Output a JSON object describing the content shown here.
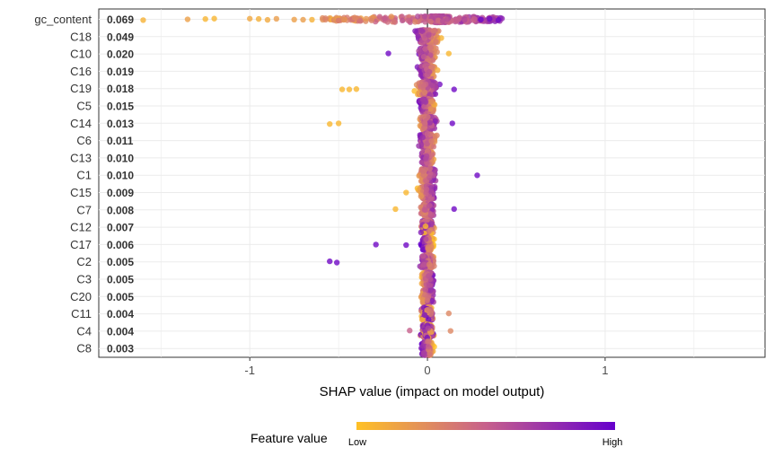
{
  "chart_data": {
    "type": "scatter",
    "subtype": "shap-beeswarm",
    "xlabel": "SHAP value (impact on model output)",
    "xlim": [
      -1.85,
      1.9
    ],
    "x_ticks": [
      -1,
      0,
      1
    ],
    "x_tick_labels": [
      "-1",
      "0",
      "1"
    ],
    "grid": true,
    "features": [
      {
        "name": "gc_content",
        "mean_abs_shap": "0.069",
        "min": -1.6,
        "max": 0.42,
        "spread": 0.22,
        "outliers_low": [
          -1.6,
          -1.35,
          -1.25,
          -1.2,
          -1.0,
          -0.95,
          -0.9,
          -0.85,
          -0.75,
          -0.7,
          -0.65
        ],
        "outliers_high": [
          0.3,
          0.35,
          0.4
        ],
        "trend": "high-positive"
      },
      {
        "name": "C18",
        "mean_abs_shap": "0.049",
        "min": -0.2,
        "max": 0.08,
        "spread": 0.06,
        "outliers_low": [],
        "outliers_high": [],
        "trend": "high-negative"
      },
      {
        "name": "C10",
        "mean_abs_shap": "0.020",
        "min": -0.15,
        "max": 0.12,
        "spread": 0.04,
        "outliers_low": [
          -0.22
        ],
        "outliers_high": [
          0.12
        ],
        "trend": "high-negative"
      },
      {
        "name": "C16",
        "mean_abs_shap": "0.019",
        "min": -0.12,
        "max": 0.06,
        "spread": 0.04,
        "outliers_low": [],
        "outliers_high": [],
        "trend": "high-negative"
      },
      {
        "name": "C19",
        "mean_abs_shap": "0.018",
        "min": -0.13,
        "max": 0.15,
        "spread": 0.05,
        "outliers_low": [
          -0.48,
          -0.44,
          -0.4
        ],
        "outliers_high": [
          0.15
        ],
        "trend": "high-positive"
      },
      {
        "name": "C5",
        "mean_abs_shap": "0.015",
        "min": -0.1,
        "max": 0.06,
        "spread": 0.04,
        "outliers_low": [],
        "outliers_high": [],
        "trend": "high-negative"
      },
      {
        "name": "C14",
        "mean_abs_shap": "0.013",
        "min": -0.16,
        "max": 0.14,
        "spread": 0.04,
        "outliers_low": [
          -0.55,
          -0.5
        ],
        "outliers_high": [
          0.14
        ],
        "trend": "high-positive"
      },
      {
        "name": "C6",
        "mean_abs_shap": "0.011",
        "min": -0.14,
        "max": 0.06,
        "spread": 0.04,
        "outliers_low": [],
        "outliers_high": [],
        "trend": "high-negative"
      },
      {
        "name": "C13",
        "mean_abs_shap": "0.010",
        "min": -0.1,
        "max": 0.05,
        "spread": 0.03,
        "outliers_low": [],
        "outliers_high": [],
        "trend": "high-negative"
      },
      {
        "name": "C1",
        "mean_abs_shap": "0.010",
        "min": -0.14,
        "max": 0.11,
        "spread": 0.04,
        "outliers_low": [],
        "outliers_high": [
          0.28
        ],
        "trend": "high-positive"
      },
      {
        "name": "C15",
        "mean_abs_shap": "0.009",
        "min": -0.06,
        "max": 0.11,
        "spread": 0.04,
        "outliers_low": [
          -0.12
        ],
        "outliers_high": [],
        "trend": "high-positive"
      },
      {
        "name": "C7",
        "mean_abs_shap": "0.008",
        "min": -0.1,
        "max": 0.15,
        "spread": 0.03,
        "outliers_low": [
          -0.18
        ],
        "outliers_high": [
          0.15
        ],
        "trend": "high-positive"
      },
      {
        "name": "C12",
        "mean_abs_shap": "0.007",
        "min": -0.05,
        "max": 0.04,
        "spread": 0.03,
        "outliers_low": [],
        "outliers_high": [],
        "trend": "mixed"
      },
      {
        "name": "C17",
        "mean_abs_shap": "0.006",
        "min": -0.05,
        "max": 0.04,
        "spread": 0.03,
        "outliers_low": [
          -0.29,
          -0.12
        ],
        "outliers_high": [],
        "trend": "high-negative"
      },
      {
        "name": "C2",
        "mean_abs_shap": "0.005",
        "min": -0.12,
        "max": 0.04,
        "spread": 0.03,
        "outliers_low": [
          -0.55,
          -0.51
        ],
        "outliers_high": [],
        "trend": "high-negative"
      },
      {
        "name": "C3",
        "mean_abs_shap": "0.005",
        "min": -0.04,
        "max": 0.08,
        "spread": 0.03,
        "outliers_low": [],
        "outliers_high": [],
        "trend": "high-positive"
      },
      {
        "name": "C20",
        "mean_abs_shap": "0.005",
        "min": -0.07,
        "max": 0.1,
        "spread": 0.03,
        "outliers_low": [],
        "outliers_high": [],
        "trend": "high-positive"
      },
      {
        "name": "C11",
        "mean_abs_shap": "0.004",
        "min": -0.05,
        "max": 0.03,
        "spread": 0.03,
        "outliers_low": [],
        "outliers_high": [
          0.12
        ],
        "trend": "mixed"
      },
      {
        "name": "C4",
        "mean_abs_shap": "0.004",
        "min": -0.07,
        "max": 0.05,
        "spread": 0.03,
        "outliers_low": [
          -0.1
        ],
        "outliers_high": [
          0.13
        ],
        "trend": "mixed"
      },
      {
        "name": "C8",
        "mean_abs_shap": "0.003",
        "min": -0.06,
        "max": 0.04,
        "spread": 0.03,
        "outliers_low": [],
        "outliers_high": [],
        "trend": "high-negative"
      }
    ],
    "color_scale": {
      "low": "#FFC125",
      "mid": "#C7608C",
      "high": "#6600CC"
    },
    "legend": {
      "title": "Feature value",
      "low_label": "Low",
      "high_label": "High",
      "placement": "bottom"
    }
  }
}
